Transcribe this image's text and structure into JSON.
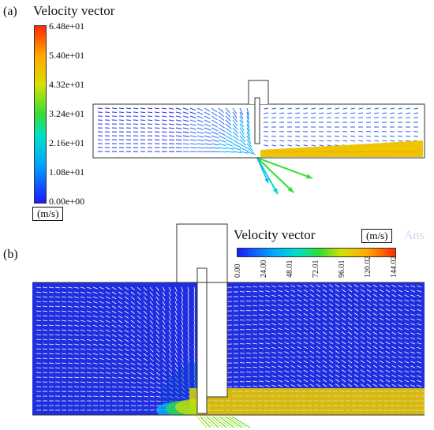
{
  "panel_a": {
    "label": "(a)",
    "title": "Velocity vector",
    "unit": "(m/s)",
    "scale_ticks": [
      "6.48e+01",
      "5.40e+01",
      "4.32e+01",
      "3.24e+01",
      "2.16e+01",
      "1.08e+01",
      "0.00e+00"
    ]
  },
  "panel_b": {
    "label": "(b)",
    "title": "Velocity vector",
    "unit": "(m/s)",
    "scale_ticks": [
      "0.00",
      "24.00",
      "48.01",
      "72.01",
      "96.01",
      "120.02",
      "144.02"
    ],
    "watermark": "Ans"
  },
  "colormap": [
    "#1a1aff",
    "#00a6ff",
    "#00e0c8",
    "#33dd33",
    "#d8e000",
    "#ffaa00",
    "#ff2a00"
  ]
}
